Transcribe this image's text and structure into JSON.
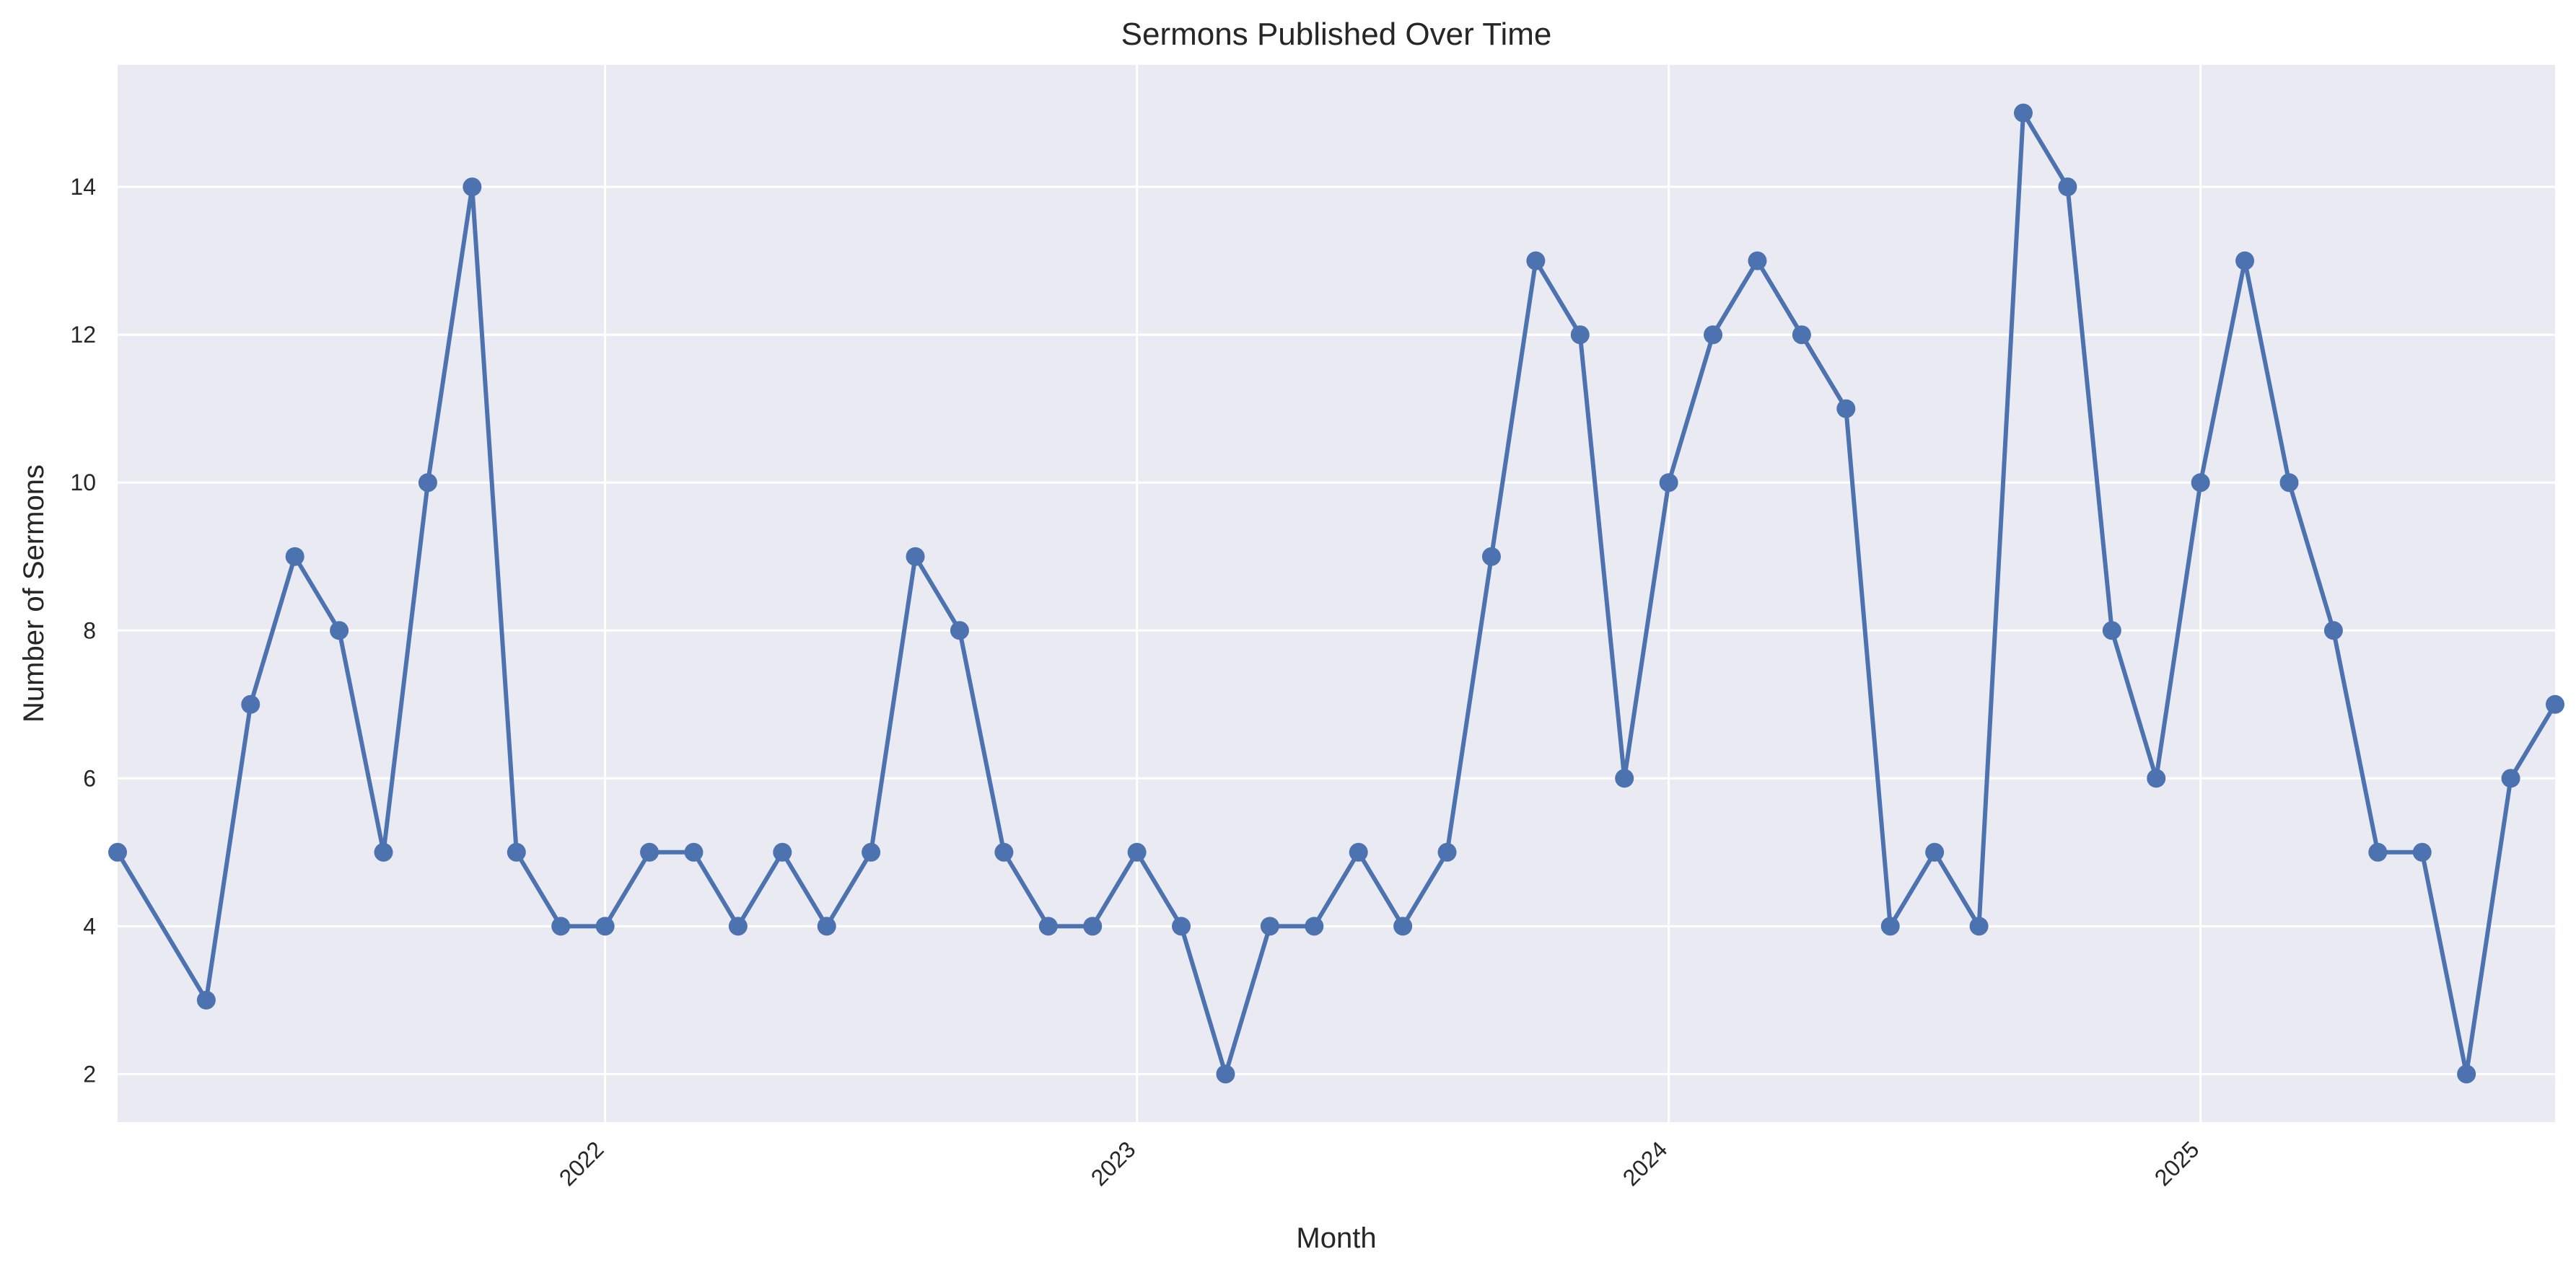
{
  "chart_data": {
    "type": "line",
    "title": "Sermons Published Over Time",
    "xlabel": "Month",
    "ylabel": "Number of Sermons",
    "x_tick_labels": [
      "2022",
      "2023",
      "2024",
      "2025"
    ],
    "y_ticks": [
      2,
      4,
      6,
      8,
      10,
      12,
      14
    ],
    "ylim": [
      1.35,
      15.65
    ],
    "xlim": [
      "2021-02",
      "2025-09"
    ],
    "grid": true,
    "colors": {
      "background": "#EAEAF2",
      "grid": "#FFFFFF",
      "line": "#4C72B0",
      "text": "#262626"
    },
    "series": [
      {
        "x": [
          "2021-02",
          "2021-04",
          "2021-05",
          "2021-06",
          "2021-07",
          "2021-08",
          "2021-09",
          "2021-10",
          "2021-11",
          "2021-12",
          "2022-01",
          "2022-02",
          "2022-03",
          "2022-04",
          "2022-05",
          "2022-06",
          "2022-07",
          "2022-08",
          "2022-09",
          "2022-10",
          "2022-11",
          "2022-12",
          "2023-01",
          "2023-02",
          "2023-03",
          "2023-04",
          "2023-05",
          "2023-06",
          "2023-07",
          "2023-08",
          "2023-09",
          "2023-10",
          "2023-11",
          "2023-12",
          "2024-01",
          "2024-02",
          "2024-03",
          "2024-04",
          "2024-05",
          "2024-06",
          "2024-07",
          "2024-08",
          "2024-09",
          "2024-10",
          "2024-11",
          "2024-12",
          "2025-01",
          "2025-02",
          "2025-03",
          "2025-04",
          "2025-05",
          "2025-06",
          "2025-07",
          "2025-08",
          "2025-09"
        ],
        "values": [
          5,
          3,
          7,
          9,
          8,
          5,
          10,
          14,
          5,
          4,
          4,
          5,
          5,
          4,
          5,
          4,
          5,
          9,
          8,
          5,
          4,
          4,
          5,
          4,
          2,
          4,
          4,
          5,
          4,
          5,
          9,
          13,
          12,
          6,
          10,
          12,
          13,
          12,
          11,
          4,
          5,
          4,
          15,
          14,
          8,
          6,
          10,
          13,
          10,
          8,
          5,
          5,
          2,
          6,
          7
        ]
      }
    ]
  }
}
